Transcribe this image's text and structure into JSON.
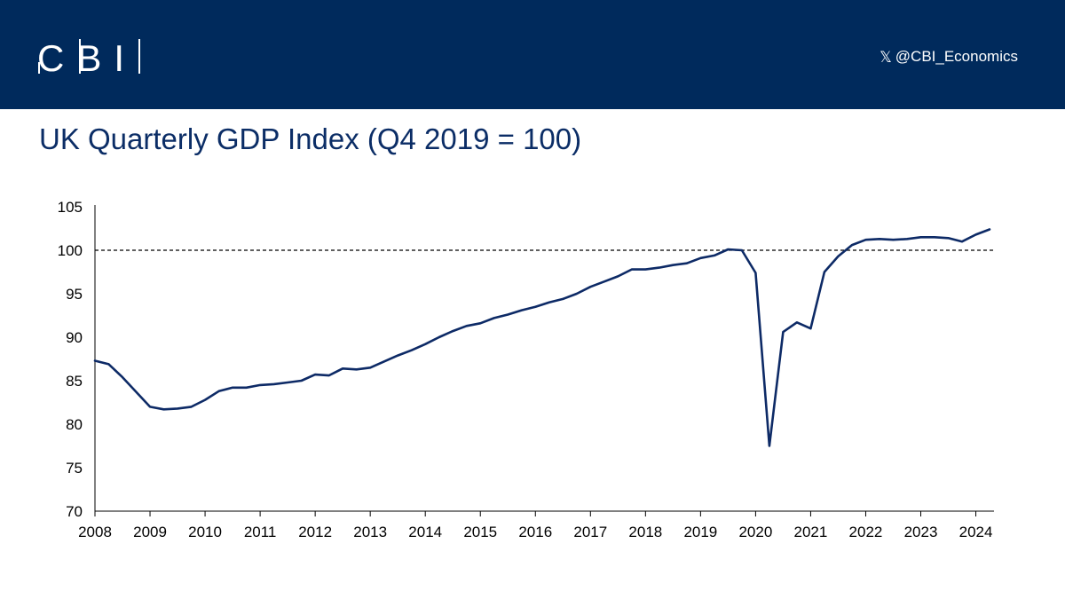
{
  "header": {
    "logo_text": "CBI",
    "social_icon": "x-logo-icon",
    "social_handle": "@CBI_Economics",
    "background_color": "#002a5c"
  },
  "title": "UK Quarterly GDP Index (Q4 2019 = 100)",
  "chart_data": {
    "type": "line",
    "title": "UK Quarterly GDP Index (Q4 2019 = 100)",
    "xlabel": "",
    "ylabel": "",
    "ylim": [
      70,
      105
    ],
    "yticks": [
      70,
      75,
      80,
      85,
      90,
      95,
      100,
      105
    ],
    "xlim": [
      2008.0,
      2024.33
    ],
    "xtick_labels": [
      "2008",
      "2009",
      "2010",
      "2011",
      "2012",
      "2013",
      "2014",
      "2015",
      "2016",
      "2017",
      "2018",
      "2019",
      "2020",
      "2021",
      "2022",
      "2023",
      "2024"
    ],
    "grid": false,
    "legend": "none",
    "reference_line": {
      "y": 100,
      "style": "dashed",
      "color": "#000000"
    },
    "series": [
      {
        "color": "#0d2a66",
        "x": [
          2008.0,
          2008.25,
          2008.5,
          2008.75,
          2009.0,
          2009.25,
          2009.5,
          2009.75,
          2010.0,
          2010.25,
          2010.5,
          2010.75,
          2011.0,
          2011.25,
          2011.5,
          2011.75,
          2012.0,
          2012.25,
          2012.5,
          2012.75,
          2013.0,
          2013.25,
          2013.5,
          2013.75,
          2014.0,
          2014.25,
          2014.5,
          2014.75,
          2015.0,
          2015.25,
          2015.5,
          2015.75,
          2016.0,
          2016.25,
          2016.5,
          2016.75,
          2017.0,
          2017.25,
          2017.5,
          2017.75,
          2018.0,
          2018.25,
          2018.5,
          2018.75,
          2019.0,
          2019.25,
          2019.5,
          2019.75,
          2020.0,
          2020.25,
          2020.5,
          2020.75,
          2021.0,
          2021.25,
          2021.5,
          2021.75,
          2022.0,
          2022.25,
          2022.5,
          2022.75,
          2023.0,
          2023.25,
          2023.5,
          2023.75,
          2024.0,
          2024.25
        ],
        "values": [
          87.3,
          86.9,
          85.4,
          83.7,
          82.0,
          81.7,
          81.8,
          82.0,
          82.8,
          83.8,
          84.2,
          84.2,
          84.5,
          84.6,
          84.8,
          85.0,
          85.7,
          85.6,
          86.4,
          86.3,
          86.5,
          87.2,
          87.9,
          88.5,
          89.2,
          90.0,
          90.7,
          91.3,
          91.6,
          92.2,
          92.6,
          93.1,
          93.5,
          94.0,
          94.4,
          95.0,
          95.8,
          96.4,
          97.0,
          97.8,
          97.8,
          98.0,
          98.3,
          98.5,
          99.1,
          99.4,
          100.1,
          100.0,
          97.4,
          77.5,
          90.6,
          91.7,
          91.0,
          97.5,
          99.3,
          100.6,
          101.2,
          101.3,
          101.2,
          101.3,
          101.5,
          101.5,
          101.4,
          101.0,
          101.8,
          102.4
        ]
      }
    ]
  }
}
